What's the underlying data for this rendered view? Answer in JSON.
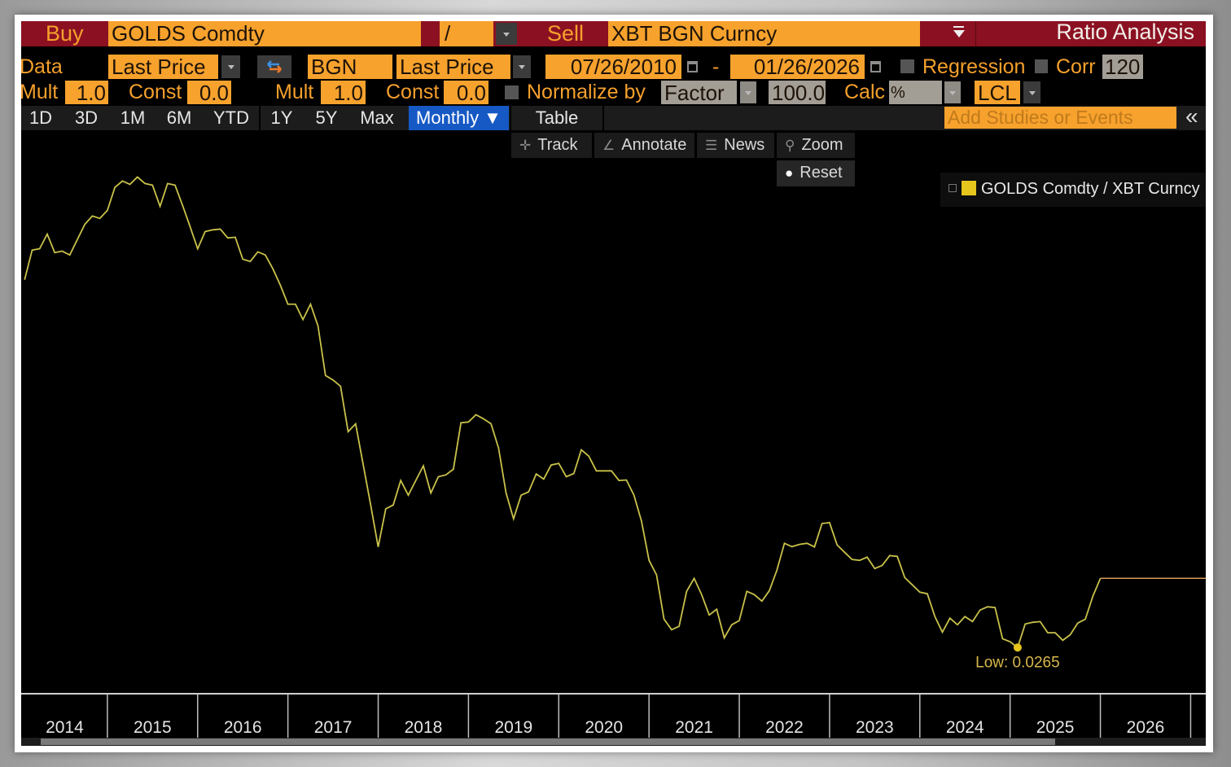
{
  "header": {
    "buy_label": "Buy",
    "buy_security": "GOLDS Comdty",
    "operator": "/",
    "sell_label": "Sell",
    "sell_security": "XBT BGN Curncy",
    "title": "Ratio Analysis"
  },
  "row_data": {
    "data_label": "Data",
    "buy_field": "Last Price",
    "sell_source": "BGN",
    "sell_field": "Last Price",
    "start_date": "07/26/2010",
    "date_sep": "-",
    "end_date": "01/26/2026",
    "regression_label": "Regression",
    "corr_label": "Corr",
    "corr_value": "120"
  },
  "row_adjust": {
    "mult_label": "Mult",
    "buy_mult": "1.0",
    "const_label": "Const",
    "buy_const": "0.0",
    "sell_mult": "1.0",
    "sell_const": "0.0",
    "normalize_label": "Normalize by",
    "normalize_value": "Factor",
    "factor_value": "100.0",
    "calc_label": "Calc",
    "calc_value": "%",
    "currency": "LCL"
  },
  "tabs": [
    {
      "label": "1D"
    },
    {
      "label": "3D"
    },
    {
      "label": "1M"
    },
    {
      "label": "6M"
    },
    {
      "label": "YTD"
    },
    {
      "label": "1Y"
    },
    {
      "label": "5Y"
    },
    {
      "label": "Max"
    },
    {
      "label": "Monthly ▼",
      "active": true
    },
    {
      "label": "Table"
    }
  ],
  "studies_placeholder": "Add Studies or Events",
  "collapse_label": "«",
  "toolbar": {
    "track": "Track",
    "annotate": "Annotate",
    "news": "News",
    "zoom": "Zoom",
    "reset": "Reset"
  },
  "icons": {
    "track": "crosshair-icon",
    "annotate": "pencil-icon",
    "news": "news-list-icon",
    "zoom": "magnifier-icon",
    "reset": "circle-icon",
    "swap": "swap-arrows-icon",
    "calendar": "calendar-icon"
  },
  "colors": {
    "header_red": "#8b1122",
    "field_orange": "#f7a22d",
    "active_tab": "#1659c4",
    "series_line": "#c9c24a",
    "legend_swatch": "#e6c51c",
    "projection": "#d89a55"
  },
  "chart_data": {
    "type": "line",
    "title": "",
    "xlabel": "",
    "ylabel": "",
    "yscale": "log",
    "ylim": [
      0.0156,
      10
    ],
    "xlim": [
      "2014-01",
      "2027-03"
    ],
    "x_tick_labels": [
      "2014",
      "2015",
      "2016",
      "2017",
      "2018",
      "2019",
      "2020",
      "2021",
      "2022",
      "2023",
      "2024",
      "2025",
      "2026"
    ],
    "grid": false,
    "legend": {
      "placement": "top-right",
      "entries": [
        "GOLDS Comdty / XBT Curncy"
      ]
    },
    "annotations": [
      {
        "label": "Low: 0.0265",
        "date": "2025-02",
        "value": 0.0265
      }
    ],
    "series": [
      {
        "name": "GOLDS Comdty / XBT Curncy",
        "points": [
          [
            "2014-02",
            1.8
          ],
          [
            "2014-03",
            2.53
          ],
          [
            "2014-04",
            2.57
          ],
          [
            "2014-05",
            3.04
          ],
          [
            "2014-06",
            2.46
          ],
          [
            "2014-07",
            2.5
          ],
          [
            "2014-08",
            2.39
          ],
          [
            "2014-09",
            2.85
          ],
          [
            "2014-10",
            3.4
          ],
          [
            "2014-11",
            3.74
          ],
          [
            "2014-12",
            3.64
          ],
          [
            "2015-01",
            3.99
          ],
          [
            "2015-02",
            5.19
          ],
          [
            "2015-03",
            5.59
          ],
          [
            "2015-04",
            5.38
          ],
          [
            "2015-05",
            5.85
          ],
          [
            "2015-06",
            5.43
          ],
          [
            "2015-07",
            5.33
          ],
          [
            "2015-08",
            4.18
          ],
          [
            "2015-09",
            5.43
          ],
          [
            "2015-10",
            5.33
          ],
          [
            "2015-11",
            4.22
          ],
          [
            "2015-12",
            3.31
          ],
          [
            "2016-01",
            2.57
          ],
          [
            "2016-02",
            3.13
          ],
          [
            "2016-03",
            3.19
          ],
          [
            "2016-04",
            3.22
          ],
          [
            "2016-05",
            2.91
          ],
          [
            "2016-06",
            2.93
          ],
          [
            "2016-07",
            2.28
          ],
          [
            "2016-08",
            2.22
          ],
          [
            "2016-09",
            2.48
          ],
          [
            "2016-10",
            2.39
          ],
          [
            "2016-11",
            2.04
          ],
          [
            "2016-12",
            1.69
          ],
          [
            "2017-01",
            1.36
          ],
          [
            "2017-02",
            1.36
          ],
          [
            "2017-03",
            1.14
          ],
          [
            "2017-04",
            1.36
          ],
          [
            "2017-05",
            1.06
          ],
          [
            "2017-06",
            0.6
          ],
          [
            "2017-07",
            0.57
          ],
          [
            "2017-08",
            0.53
          ],
          [
            "2017-09",
            0.315
          ],
          [
            "2017-10",
            0.345
          ],
          [
            "2017-11",
            0.217
          ],
          [
            "2017-12",
            0.136
          ],
          [
            "2018-01",
            0.084
          ],
          [
            "2018-02",
            0.13
          ],
          [
            "2018-03",
            0.136
          ],
          [
            "2018-04",
            0.18
          ],
          [
            "2018-05",
            0.152
          ],
          [
            "2018-06",
            0.18
          ],
          [
            "2018-07",
            0.213
          ],
          [
            "2018-08",
            0.156
          ],
          [
            "2018-09",
            0.188
          ],
          [
            "2018-10",
            0.192
          ],
          [
            "2018-11",
            0.205
          ],
          [
            "2018-12",
            0.349
          ],
          [
            "2019-01",
            0.352
          ],
          [
            "2019-02",
            0.383
          ],
          [
            "2019-03",
            0.365
          ],
          [
            "2019-04",
            0.345
          ],
          [
            "2019-05",
            0.261
          ],
          [
            "2019-06",
            0.156
          ],
          [
            "2019-07",
            0.116
          ],
          [
            "2019-08",
            0.152
          ],
          [
            "2019-09",
            0.158
          ],
          [
            "2019-10",
            0.194
          ],
          [
            "2019-11",
            0.183
          ],
          [
            "2019-12",
            0.215
          ],
          [
            "2020-01",
            0.219
          ],
          [
            "2020-02",
            0.188
          ],
          [
            "2020-03",
            0.195
          ],
          [
            "2020-04",
            0.256
          ],
          [
            "2020-05",
            0.238
          ],
          [
            "2020-06",
            0.201
          ],
          [
            "2020-07",
            0.201
          ],
          [
            "2020-08",
            0.201
          ],
          [
            "2020-09",
            0.18
          ],
          [
            "2020-10",
            0.181
          ],
          [
            "2020-11",
            0.152
          ],
          [
            "2020-12",
            0.113
          ],
          [
            "2021-01",
            0.072
          ],
          [
            "2021-02",
            0.061
          ],
          [
            "2021-03",
            0.0367
          ],
          [
            "2021-04",
            0.0325
          ],
          [
            "2021-05",
            0.0338
          ],
          [
            "2021-06",
            0.0505
          ],
          [
            "2021-07",
            0.0586
          ],
          [
            "2021-08",
            0.0486
          ],
          [
            "2021-09",
            0.0385
          ],
          [
            "2021-10",
            0.0411
          ],
          [
            "2021-11",
            0.0296
          ],
          [
            "2021-12",
            0.0344
          ],
          [
            "2022-01",
            0.0361
          ],
          [
            "2022-02",
            0.0505
          ],
          [
            "2022-03",
            0.0486
          ],
          [
            "2022-04",
            0.0451
          ],
          [
            "2022-05",
            0.0509
          ],
          [
            "2022-06",
            0.0643
          ],
          [
            "2022-07",
            0.0876
          ],
          [
            "2022-08",
            0.0843
          ],
          [
            "2022-09",
            0.0865
          ],
          [
            "2022-10",
            0.0876
          ],
          [
            "2022-11",
            0.084
          ],
          [
            "2022-12",
            0.11
          ],
          [
            "2023-01",
            0.111
          ],
          [
            "2023-02",
            0.0859
          ],
          [
            "2023-03",
            0.079
          ],
          [
            "2023-04",
            0.0727
          ],
          [
            "2023-05",
            0.072
          ],
          [
            "2023-06",
            0.0747
          ],
          [
            "2023-07",
            0.0656
          ],
          [
            "2023-08",
            0.068
          ],
          [
            "2023-09",
            0.0761
          ],
          [
            "2023-10",
            0.0754
          ],
          [
            "2023-11",
            0.0591
          ],
          [
            "2023-12",
            0.0544
          ],
          [
            "2024-01",
            0.05
          ],
          [
            "2024-02",
            0.0491
          ],
          [
            "2024-03",
            0.0378
          ],
          [
            "2024-04",
            0.0316
          ],
          [
            "2024-05",
            0.0371
          ],
          [
            "2024-06",
            0.0344
          ],
          [
            "2024-07",
            0.0378
          ],
          [
            "2024-08",
            0.0357
          ],
          [
            "2024-09",
            0.0407
          ],
          [
            "2024-10",
            0.0423
          ],
          [
            "2024-11",
            0.0419
          ],
          [
            "2024-12",
            0.0293
          ],
          [
            "2025-01",
            0.0283
          ],
          [
            "2025-02",
            0.0265
          ],
          [
            "2025-03",
            0.0347
          ],
          [
            "2025-04",
            0.0354
          ],
          [
            "2025-05",
            0.0357
          ],
          [
            "2025-06",
            0.0314
          ],
          [
            "2025-07",
            0.0314
          ],
          [
            "2025-08",
            0.0288
          ],
          [
            "2025-09",
            0.0307
          ],
          [
            "2025-10",
            0.0351
          ],
          [
            "2025-11",
            0.0367
          ],
          [
            "2025-12",
            0.0477
          ],
          [
            "2026-01",
            0.0586
          ]
        ]
      }
    ]
  }
}
